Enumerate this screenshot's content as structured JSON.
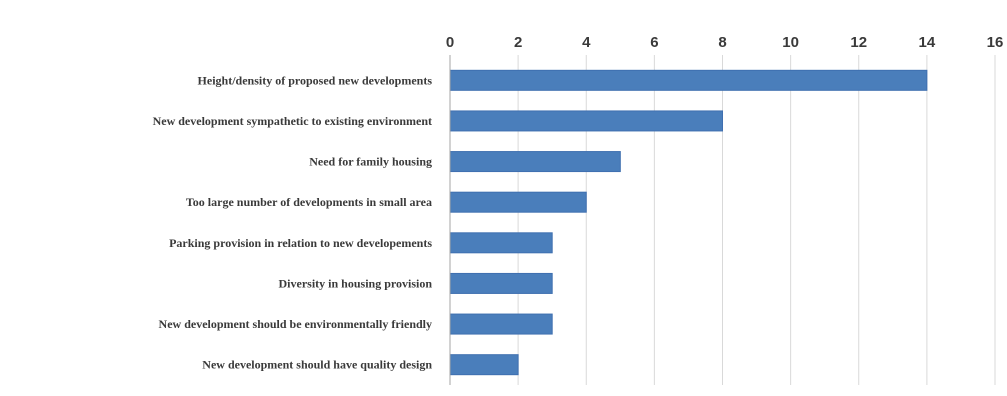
{
  "chart_data": {
    "type": "bar",
    "orientation": "horizontal",
    "title": "",
    "xlabel": "",
    "ylabel": "",
    "categories": [
      "Height/density of proposed new developments",
      "New development sympathetic to existing environment",
      "Need for family housing",
      "Too large number of developments in small area",
      "Parking provision in relation to new developements",
      "Diversity in housing provision",
      "New development should be environmentally friendly",
      "New development should have quality design"
    ],
    "values": [
      14,
      8,
      5,
      4,
      3,
      3,
      3,
      2
    ],
    "xlim": [
      0,
      16
    ],
    "xticks": [
      "0",
      "2",
      "4",
      "6",
      "8",
      "10",
      "12",
      "14",
      "16"
    ],
    "x_axis_position": "top",
    "grid": true,
    "bar_color": "#4a7ebb"
  }
}
